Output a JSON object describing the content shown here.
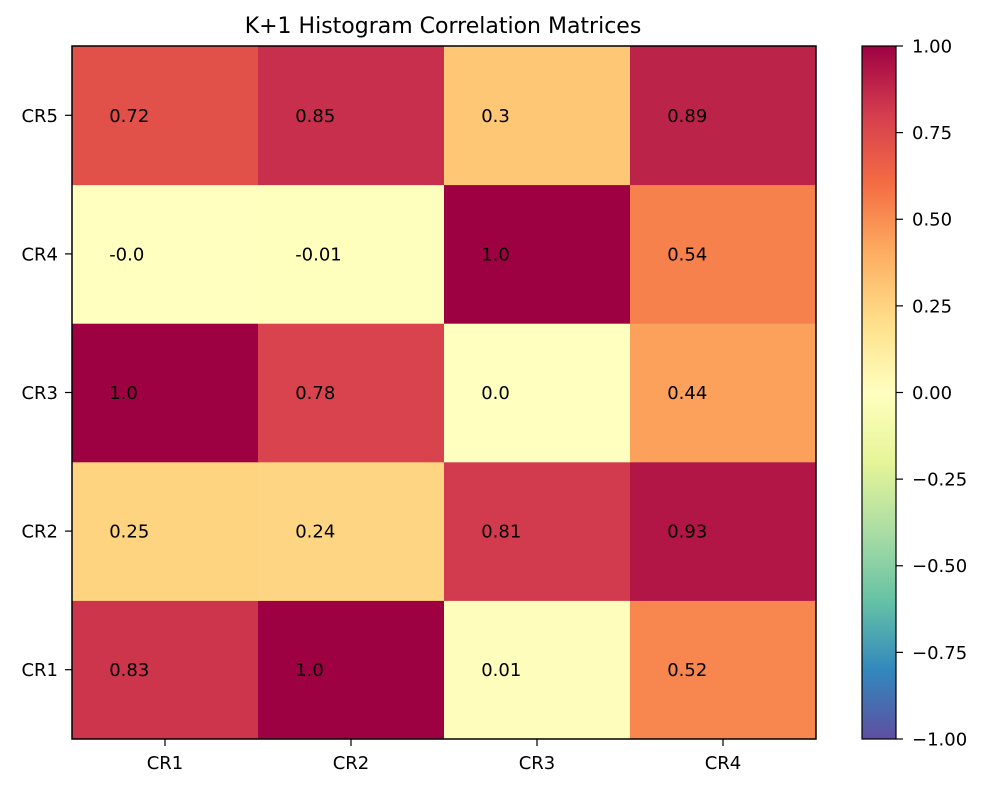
{
  "chart_data": {
    "type": "heatmap",
    "title": "K+1 Histogram Correlation Matrices",
    "x_categories": [
      "CR1",
      "CR2",
      "CR3",
      "CR4"
    ],
    "y_categories": [
      "CR1",
      "CR2",
      "CR3",
      "CR4",
      "CR5"
    ],
    "values": [
      [
        0.83,
        1.0,
        0.01,
        0.52
      ],
      [
        0.25,
        0.24,
        0.81,
        0.93
      ],
      [
        1.0,
        0.78,
        0.0,
        0.44
      ],
      [
        -0.0,
        -0.01,
        1.0,
        0.54
      ],
      [
        0.72,
        0.85,
        0.3,
        0.89
      ]
    ],
    "value_labels": [
      [
        "0.83",
        "1.0",
        "0.01",
        "0.52"
      ],
      [
        "0.25",
        "0.24",
        "0.81",
        "0.93"
      ],
      [
        "1.0",
        "0.78",
        "0.0",
        "0.44"
      ],
      [
        "-0.0",
        "-0.01",
        "1.0",
        "0.54"
      ],
      [
        "0.72",
        "0.85",
        "0.3",
        "0.89"
      ]
    ],
    "colormap": "Spectral_r",
    "vmin": -1.0,
    "vmax": 1.0,
    "colorbar_ticks": [
      1.0,
      0.75,
      0.5,
      0.25,
      0.0,
      -0.25,
      -0.5,
      -0.75,
      -1.0
    ],
    "colorbar_tick_labels": [
      "1.00",
      "0.75",
      "0.50",
      "0.25",
      "0.00",
      "−0.25",
      "−0.50",
      "−0.75",
      "−1.00"
    ],
    "colorbar_position": "right",
    "grid": false
  }
}
